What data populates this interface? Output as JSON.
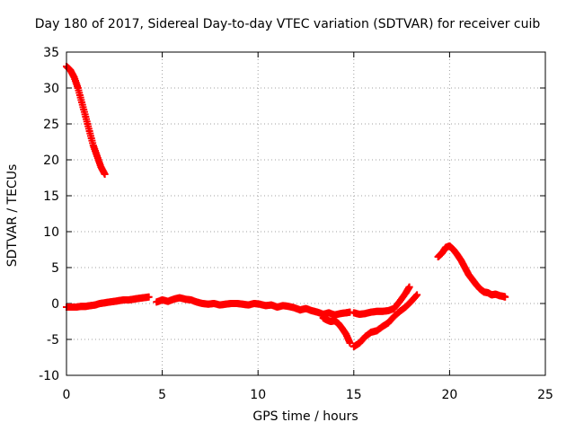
{
  "chart_data": {
    "type": "scatter",
    "title": "Day 180 of 2017, Sidereal Day-to-day VTEC variation (SDTVAR) for receiver cuib",
    "xlabel": "GPS time / hours",
    "ylabel": "SDTVAR / TECUs",
    "xlim": [
      0,
      25
    ],
    "ylim": [
      -10,
      35
    ],
    "grid": true,
    "marker": "plus",
    "color": "#ff0000",
    "xticks": [
      0,
      5,
      10,
      15,
      20,
      25
    ],
    "yticks": [
      -10,
      -5,
      0,
      5,
      10,
      15,
      20,
      25,
      30,
      35
    ],
    "series": [
      {
        "name": "cuib",
        "x": [
          0,
          0.2,
          0.4,
          0.6,
          0.8,
          1.0,
          1.2,
          1.4,
          1.6,
          1.8,
          2.0
        ],
        "y": [
          33,
          32.5,
          31.5,
          30,
          28,
          26,
          24,
          22,
          20.5,
          19,
          18
        ]
      },
      {
        "name": "cuib",
        "x": [
          0,
          0.25,
          0.5,
          0.75,
          1.0,
          1.25,
          1.5,
          1.75,
          2.0,
          2.25,
          2.5,
          2.75,
          3.0,
          3.25,
          3.5,
          3.75,
          4.0,
          4.3
        ],
        "y": [
          -0.5,
          -0.5,
          -0.5,
          -0.4,
          -0.4,
          -0.3,
          -0.2,
          0,
          0.1,
          0.2,
          0.3,
          0.4,
          0.5,
          0.5,
          0.6,
          0.7,
          0.8,
          0.9
        ]
      },
      {
        "name": "cuib",
        "x": [
          4.7,
          5.0,
          5.3,
          5.6,
          5.9,
          6.2,
          6.5,
          6.8,
          7.1,
          7.4,
          7.7,
          8.0,
          8.3,
          8.6,
          8.9,
          9.2,
          9.5,
          9.8,
          10.1,
          10.4,
          10.7,
          11.0,
          11.3,
          11.6,
          11.9,
          12.2,
          12.5,
          12.8,
          13.1,
          13.4,
          13.7,
          14.0,
          14.3,
          14.6,
          14.8
        ],
        "y": [
          0.2,
          0.5,
          0.3,
          0.6,
          0.8,
          0.6,
          0.5,
          0.2,
          0,
          -0.1,
          0,
          -0.2,
          -0.1,
          0,
          0,
          -0.1,
          -0.2,
          0,
          -0.1,
          -0.3,
          -0.2,
          -0.5,
          -0.3,
          -0.4,
          -0.6,
          -0.9,
          -0.7,
          -1,
          -1.2,
          -1.5,
          -1.3,
          -1.6,
          -1.4,
          -1.3,
          -1.2
        ]
      },
      {
        "name": "cuib",
        "x": [
          13.4,
          13.6,
          13.8,
          14.0,
          14.2,
          14.4,
          14.6,
          14.8
        ],
        "y": [
          -2,
          -2.3,
          -2.5,
          -2.4,
          -2.8,
          -3.5,
          -4.3,
          -5.5
        ]
      },
      {
        "name": "cuib",
        "x": [
          15.0,
          15.3,
          15.6,
          15.9,
          16.2,
          16.5,
          16.8,
          17.1,
          17.4,
          17.7,
          18.0,
          18.3
        ],
        "y": [
          -6,
          -5.5,
          -4.6,
          -4,
          -3.8,
          -3.2,
          -2.7,
          -1.8,
          -1.1,
          -0.5,
          0.3,
          1.2
        ]
      },
      {
        "name": "cuib",
        "x": [
          15.0,
          15.3,
          15.6,
          15.9,
          16.2,
          16.5,
          16.8,
          17.1,
          17.4,
          17.7,
          17.9
        ],
        "y": [
          -1.3,
          -1.5,
          -1.4,
          -1.2,
          -1.1,
          -1.1,
          -1,
          -0.7,
          0.3,
          1.4,
          2.3
        ]
      },
      {
        "name": "cuib",
        "x": [
          19.4,
          19.6,
          19.8,
          20.0,
          20.2,
          20.4,
          20.6,
          20.8,
          21.0,
          21.2,
          21.4,
          21.6,
          21.8,
          22.0,
          22.2,
          22.4,
          22.6,
          22.8,
          22.9
        ],
        "y": [
          6.5,
          7,
          7.8,
          8,
          7.5,
          6.8,
          6,
          5,
          4,
          3.3,
          2.6,
          2,
          1.6,
          1.5,
          1.2,
          1.3,
          1.1,
          1,
          0.9
        ]
      }
    ]
  }
}
